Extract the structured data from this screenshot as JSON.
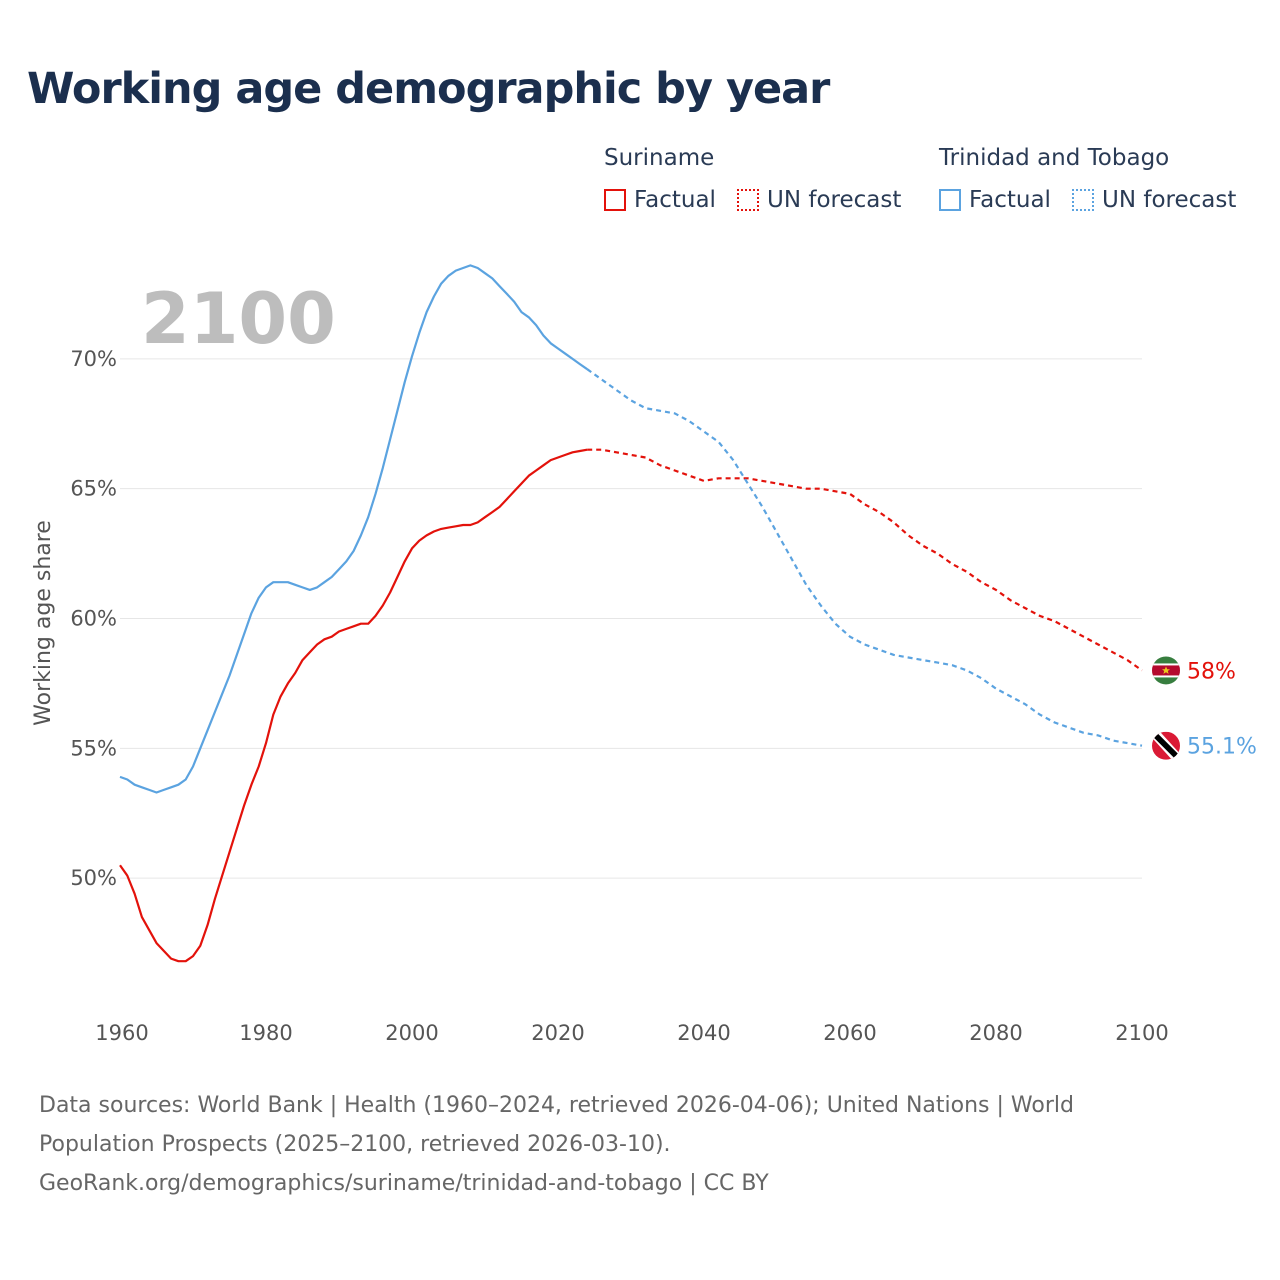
{
  "title": "Working age demographic by year",
  "legend": {
    "groups": [
      {
        "name": "Suriname",
        "factual_label": "Factual",
        "forecast_label": "UN forecast",
        "color": "#e3120b"
      },
      {
        "name": "Trinidad and Tobago",
        "factual_label": "Factual",
        "forecast_label": "UN forecast",
        "color": "#5ba3e0"
      }
    ]
  },
  "year_display": "2100",
  "end_labels": {
    "suriname": "58%",
    "trinidad": "55.1%"
  },
  "footer": {
    "line1": "Data sources: World Bank | Health (1960–2024, retrieved 2026-04-06); United Nations | World",
    "line2": "Population Prospects (2025–2100, retrieved 2026-03-10).",
    "line3": "GeoRank.org/demographics/suriname/trinidad-and-tobago | CC BY"
  },
  "chart_data": {
    "type": "line",
    "title": "Working age demographic by year",
    "xlabel": "",
    "ylabel": "Working age share",
    "xlim": [
      1960,
      2100
    ],
    "ylim": [
      45.5,
      74
    ],
    "x_ticks": [
      1960,
      1980,
      2000,
      2020,
      2040,
      2060,
      2080,
      2100
    ],
    "y_ticks": [
      {
        "value": 50,
        "label": "50%"
      },
      {
        "value": 55,
        "label": "55%"
      },
      {
        "value": 60,
        "label": "60%"
      },
      {
        "value": 65,
        "label": "65%"
      },
      {
        "value": 70,
        "label": "70%"
      }
    ],
    "grid": true,
    "factual_end_year": 2024,
    "series": [
      {
        "name": "Suriname",
        "color": "#e3120b",
        "end_label": "58%",
        "points": [
          [
            1960,
            50.5
          ],
          [
            1961,
            50.1
          ],
          [
            1962,
            49.4
          ],
          [
            1963,
            48.5
          ],
          [
            1964,
            48.0
          ],
          [
            1965,
            47.5
          ],
          [
            1966,
            47.2
          ],
          [
            1967,
            46.9
          ],
          [
            1968,
            46.8
          ],
          [
            1969,
            46.8
          ],
          [
            1970,
            47.0
          ],
          [
            1971,
            47.4
          ],
          [
            1972,
            48.2
          ],
          [
            1973,
            49.2
          ],
          [
            1974,
            50.1
          ],
          [
            1975,
            51.0
          ],
          [
            1976,
            51.9
          ],
          [
            1977,
            52.8
          ],
          [
            1978,
            53.6
          ],
          [
            1979,
            54.3
          ],
          [
            1980,
            55.2
          ],
          [
            1981,
            56.3
          ],
          [
            1982,
            57.0
          ],
          [
            1983,
            57.5
          ],
          [
            1984,
            57.9
          ],
          [
            1985,
            58.4
          ],
          [
            1986,
            58.7
          ],
          [
            1987,
            59.0
          ],
          [
            1988,
            59.2
          ],
          [
            1989,
            59.3
          ],
          [
            1990,
            59.5
          ],
          [
            1991,
            59.6
          ],
          [
            1992,
            59.7
          ],
          [
            1993,
            59.8
          ],
          [
            1994,
            59.8
          ],
          [
            1995,
            60.1
          ],
          [
            1996,
            60.5
          ],
          [
            1997,
            61.0
          ],
          [
            1998,
            61.6
          ],
          [
            1999,
            62.2
          ],
          [
            2000,
            62.7
          ],
          [
            2001,
            63.0
          ],
          [
            2002,
            63.2
          ],
          [
            2003,
            63.35
          ],
          [
            2004,
            63.45
          ],
          [
            2005,
            63.5
          ],
          [
            2006,
            63.55
          ],
          [
            2007,
            63.6
          ],
          [
            2008,
            63.6
          ],
          [
            2009,
            63.7
          ],
          [
            2010,
            63.9
          ],
          [
            2011,
            64.1
          ],
          [
            2012,
            64.3
          ],
          [
            2013,
            64.6
          ],
          [
            2014,
            64.9
          ],
          [
            2015,
            65.2
          ],
          [
            2016,
            65.5
          ],
          [
            2017,
            65.7
          ],
          [
            2018,
            65.9
          ],
          [
            2019,
            66.1
          ],
          [
            2020,
            66.2
          ],
          [
            2021,
            66.3
          ],
          [
            2022,
            66.4
          ],
          [
            2023,
            66.45
          ],
          [
            2024,
            66.5
          ],
          [
            2026,
            66.5
          ],
          [
            2028,
            66.4
          ],
          [
            2030,
            66.3
          ],
          [
            2032,
            66.2
          ],
          [
            2034,
            65.9
          ],
          [
            2036,
            65.7
          ],
          [
            2038,
            65.5
          ],
          [
            2040,
            65.3
          ],
          [
            2042,
            65.4
          ],
          [
            2044,
            65.4
          ],
          [
            2046,
            65.4
          ],
          [
            2048,
            65.3
          ],
          [
            2050,
            65.2
          ],
          [
            2052,
            65.1
          ],
          [
            2054,
            65.0
          ],
          [
            2056,
            65.0
          ],
          [
            2058,
            64.9
          ],
          [
            2060,
            64.8
          ],
          [
            2062,
            64.4
          ],
          [
            2064,
            64.1
          ],
          [
            2066,
            63.7
          ],
          [
            2068,
            63.2
          ],
          [
            2070,
            62.8
          ],
          [
            2072,
            62.5
          ],
          [
            2074,
            62.1
          ],
          [
            2076,
            61.8
          ],
          [
            2078,
            61.4
          ],
          [
            2080,
            61.1
          ],
          [
            2082,
            60.7
          ],
          [
            2084,
            60.4
          ],
          [
            2086,
            60.1
          ],
          [
            2088,
            59.9
          ],
          [
            2090,
            59.6
          ],
          [
            2092,
            59.3
          ],
          [
            2094,
            59.0
          ],
          [
            2096,
            58.7
          ],
          [
            2098,
            58.4
          ],
          [
            2100,
            58.0
          ]
        ]
      },
      {
        "name": "Trinidad and Tobago",
        "color": "#5ba3e0",
        "end_label": "55.1%",
        "points": [
          [
            1960,
            53.9
          ],
          [
            1961,
            53.8
          ],
          [
            1962,
            53.6
          ],
          [
            1963,
            53.5
          ],
          [
            1964,
            53.4
          ],
          [
            1965,
            53.3
          ],
          [
            1966,
            53.4
          ],
          [
            1967,
            53.5
          ],
          [
            1968,
            53.6
          ],
          [
            1969,
            53.8
          ],
          [
            1970,
            54.3
          ],
          [
            1971,
            55.0
          ],
          [
            1972,
            55.7
          ],
          [
            1973,
            56.4
          ],
          [
            1974,
            57.1
          ],
          [
            1975,
            57.8
          ],
          [
            1976,
            58.6
          ],
          [
            1977,
            59.4
          ],
          [
            1978,
            60.2
          ],
          [
            1979,
            60.8
          ],
          [
            1980,
            61.2
          ],
          [
            1981,
            61.4
          ],
          [
            1982,
            61.4
          ],
          [
            1983,
            61.4
          ],
          [
            1984,
            61.3
          ],
          [
            1985,
            61.2
          ],
          [
            1986,
            61.1
          ],
          [
            1987,
            61.2
          ],
          [
            1988,
            61.4
          ],
          [
            1989,
            61.6
          ],
          [
            1990,
            61.9
          ],
          [
            1991,
            62.2
          ],
          [
            1992,
            62.6
          ],
          [
            1993,
            63.2
          ],
          [
            1994,
            63.9
          ],
          [
            1995,
            64.8
          ],
          [
            1996,
            65.8
          ],
          [
            1997,
            66.9
          ],
          [
            1998,
            68.0
          ],
          [
            1999,
            69.1
          ],
          [
            2000,
            70.1
          ],
          [
            2001,
            71.0
          ],
          [
            2002,
            71.8
          ],
          [
            2003,
            72.4
          ],
          [
            2004,
            72.9
          ],
          [
            2005,
            73.2
          ],
          [
            2006,
            73.4
          ],
          [
            2007,
            73.5
          ],
          [
            2008,
            73.6
          ],
          [
            2009,
            73.5
          ],
          [
            2010,
            73.3
          ],
          [
            2011,
            73.1
          ],
          [
            2012,
            72.8
          ],
          [
            2013,
            72.5
          ],
          [
            2014,
            72.2
          ],
          [
            2015,
            71.8
          ],
          [
            2016,
            71.6
          ],
          [
            2017,
            71.3
          ],
          [
            2018,
            70.9
          ],
          [
            2019,
            70.6
          ],
          [
            2020,
            70.4
          ],
          [
            2021,
            70.2
          ],
          [
            2022,
            70.0
          ],
          [
            2023,
            69.8
          ],
          [
            2024,
            69.6
          ],
          [
            2026,
            69.2
          ],
          [
            2028,
            68.8
          ],
          [
            2030,
            68.4
          ],
          [
            2032,
            68.1
          ],
          [
            2034,
            68.0
          ],
          [
            2036,
            67.9
          ],
          [
            2038,
            67.6
          ],
          [
            2040,
            67.2
          ],
          [
            2042,
            66.8
          ],
          [
            2044,
            66.1
          ],
          [
            2046,
            65.2
          ],
          [
            2048,
            64.3
          ],
          [
            2050,
            63.3
          ],
          [
            2052,
            62.3
          ],
          [
            2054,
            61.3
          ],
          [
            2056,
            60.5
          ],
          [
            2058,
            59.8
          ],
          [
            2060,
            59.3
          ],
          [
            2062,
            59.0
          ],
          [
            2064,
            58.8
          ],
          [
            2066,
            58.6
          ],
          [
            2068,
            58.5
          ],
          [
            2070,
            58.4
          ],
          [
            2072,
            58.3
          ],
          [
            2074,
            58.2
          ],
          [
            2076,
            58.0
          ],
          [
            2078,
            57.7
          ],
          [
            2080,
            57.3
          ],
          [
            2082,
            57.0
          ],
          [
            2084,
            56.7
          ],
          [
            2086,
            56.3
          ],
          [
            2088,
            56.0
          ],
          [
            2090,
            55.8
          ],
          [
            2092,
            55.6
          ],
          [
            2094,
            55.5
          ],
          [
            2096,
            55.3
          ],
          [
            2098,
            55.2
          ],
          [
            2100,
            55.1
          ]
        ]
      }
    ]
  }
}
